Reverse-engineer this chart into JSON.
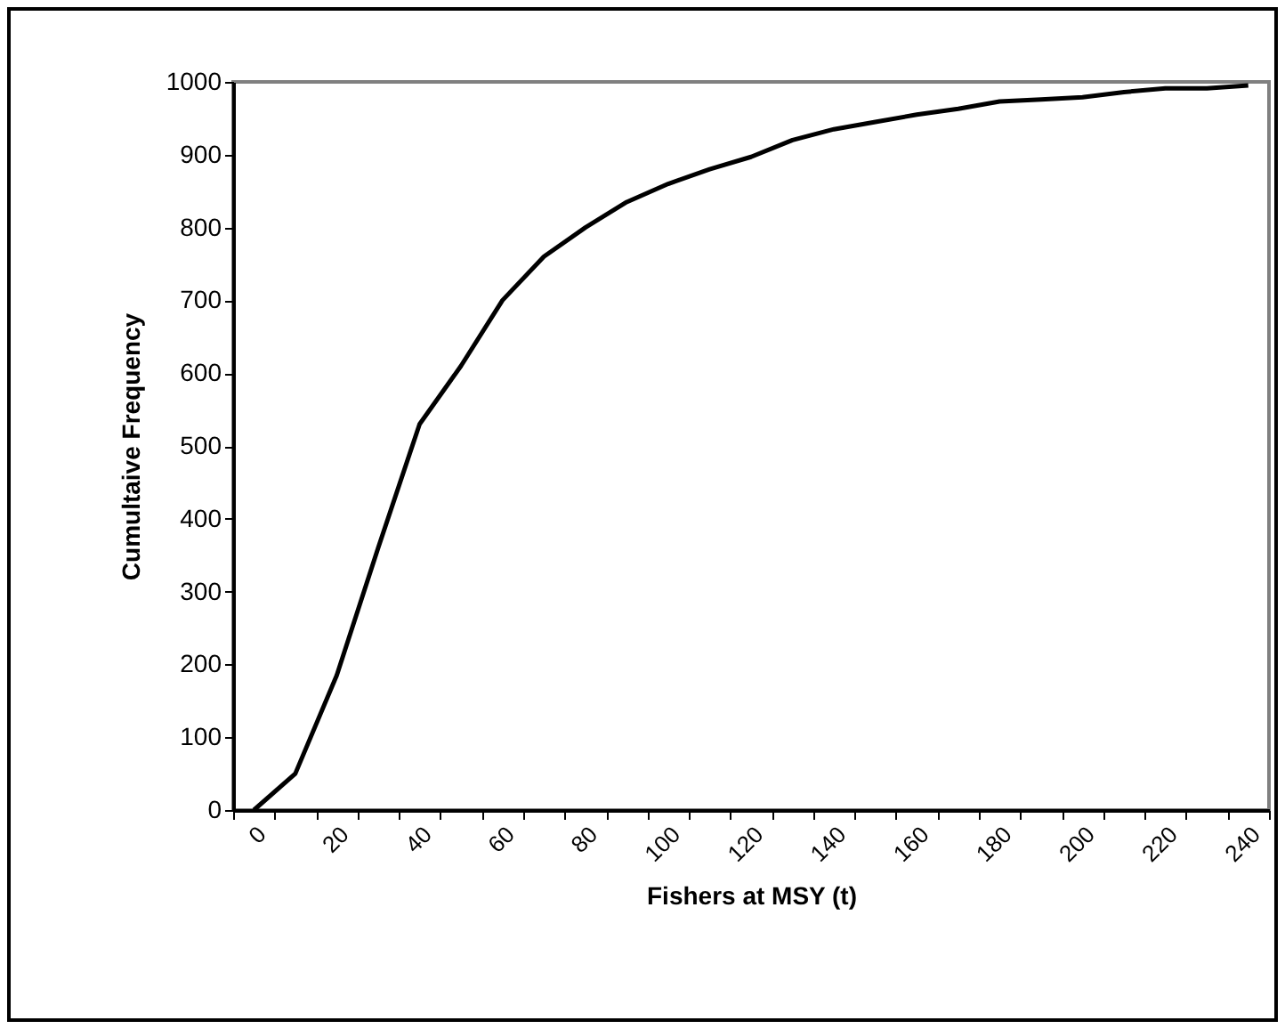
{
  "chart_data": {
    "type": "line",
    "xlabel": "Fishers at MSY (t)",
    "ylabel": "Cumultaive Frequency",
    "categories": [
      "0",
      null,
      "20",
      null,
      "40",
      null,
      "60",
      null,
      "80",
      null,
      "100",
      null,
      "120",
      null,
      "140",
      null,
      "160",
      null,
      "180",
      null,
      "200",
      null,
      "220",
      null,
      "240"
    ],
    "series": [
      {
        "color": "#000000",
        "values": [
          0,
          50,
          185,
          360,
          530,
          610,
          700,
          760,
          800,
          835,
          860,
          880,
          897,
          920,
          935,
          945,
          955,
          963,
          973,
          976,
          979,
          986,
          991,
          991,
          995
        ]
      }
    ],
    "ylim": [
      0,
      1000
    ],
    "yticks": [
      0,
      100,
      200,
      300,
      400,
      500,
      600,
      700,
      800,
      900,
      1000
    ],
    "grid": false,
    "marker": "none",
    "line_style": "solid"
  }
}
